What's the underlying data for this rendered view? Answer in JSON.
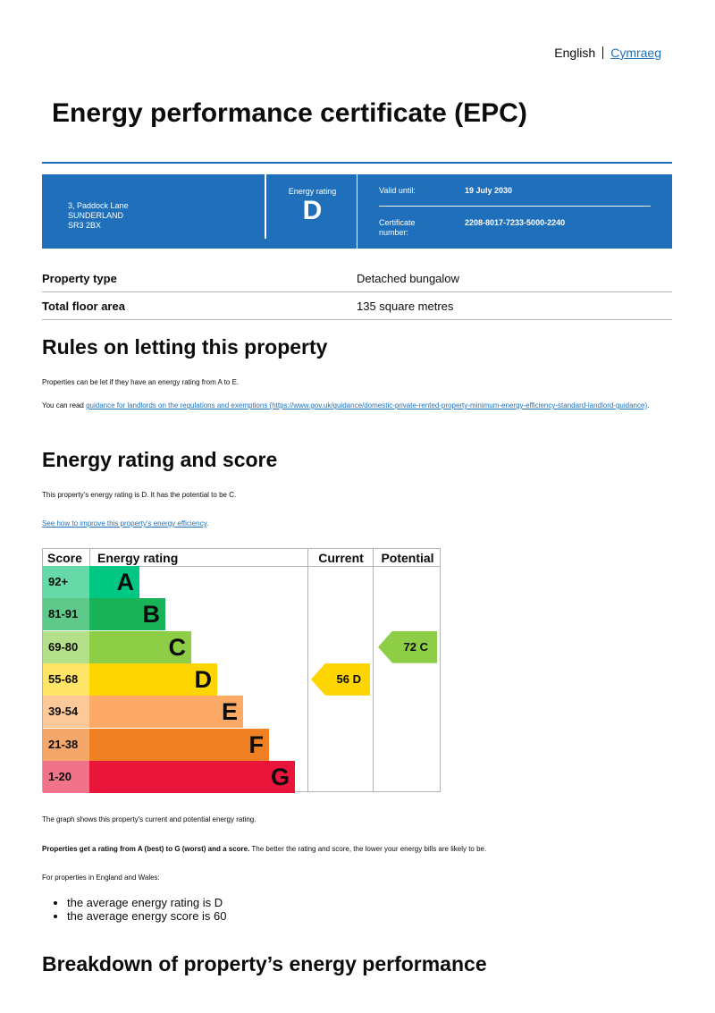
{
  "language": {
    "current": "English",
    "alternate": "Cymraeg"
  },
  "title": "Energy performance certificate (EPC)",
  "banner": {
    "address": [
      "3, Paddock Lane",
      "SUNDERLAND",
      "SR3 2BX"
    ],
    "energy_rating_label": "Energy rating",
    "energy_rating": "D",
    "valid_until_label": "Valid until:",
    "valid_until": "19 July 2030",
    "certificate_label": [
      "Certificate",
      "number:"
    ],
    "certificate_number": "2208-8017-7233-5000-2240"
  },
  "property": [
    {
      "key": "Property type",
      "value": "Detached bungalow"
    },
    {
      "key": "Total floor area",
      "value": "135 square metres"
    }
  ],
  "letting": {
    "heading": "Rules on letting this property",
    "p1": "Properties can be let if they have an energy rating from A to E.",
    "p2_prefix": "You can read ",
    "p2_link": "guidance for landlords on the regulations and exemptions",
    "p2_url_text": " (https://www.gov.uk/guidance/domestic-private-rented-property-minimum-energy-efficiency-standard-landlord-guidance)",
    "p2_suffix": "."
  },
  "rating": {
    "heading": "Energy rating and score",
    "p1": "This property's energy rating is D. It has the potential to be C.",
    "link": "See how to improve this property's energy efficiency",
    "link_suffix": "."
  },
  "energy_chart": {
    "headers": {
      "score": "Score",
      "rating": "Energy rating",
      "current": "Current",
      "potential": "Potential"
    },
    "bands": [
      {
        "score": "92+",
        "letter": "A",
        "color": "#00c781",
        "light": "#66d9a8"
      },
      {
        "score": "81-91",
        "letter": "B",
        "color": "#19b459",
        "light": "#5ec98a"
      },
      {
        "score": "69-80",
        "letter": "C",
        "color": "#8dce46",
        "light": "#b5e08a"
      },
      {
        "score": "55-68",
        "letter": "D",
        "color": "#ffd500",
        "light": "#ffe566"
      },
      {
        "score": "39-54",
        "letter": "E",
        "color": "#fcaa65",
        "light": "#fdc99b"
      },
      {
        "score": "21-38",
        "letter": "F",
        "color": "#ef8023",
        "light": "#f4a66b"
      },
      {
        "score": "1-20",
        "letter": "G",
        "color": "#e9153b",
        "light": "#f07389"
      }
    ],
    "current": {
      "score": 56,
      "letter": "D",
      "label": "56  D"
    },
    "potential": {
      "score": 72,
      "letter": "C",
      "label": "72  C"
    }
  },
  "after": {
    "p1": "The graph shows this property's current and potential energy rating.",
    "p2_bold": "Properties get a rating from A (best) to G (worst) and a score.",
    "p2_rest": " The better the rating and score, the lower your energy bills are likely to be.",
    "p3": "For properties in England and Wales:",
    "bullets": [
      "the average energy rating is D",
      "the average energy score is 60"
    ]
  },
  "breakdown_heading": "Breakdown of property’s energy performance"
}
